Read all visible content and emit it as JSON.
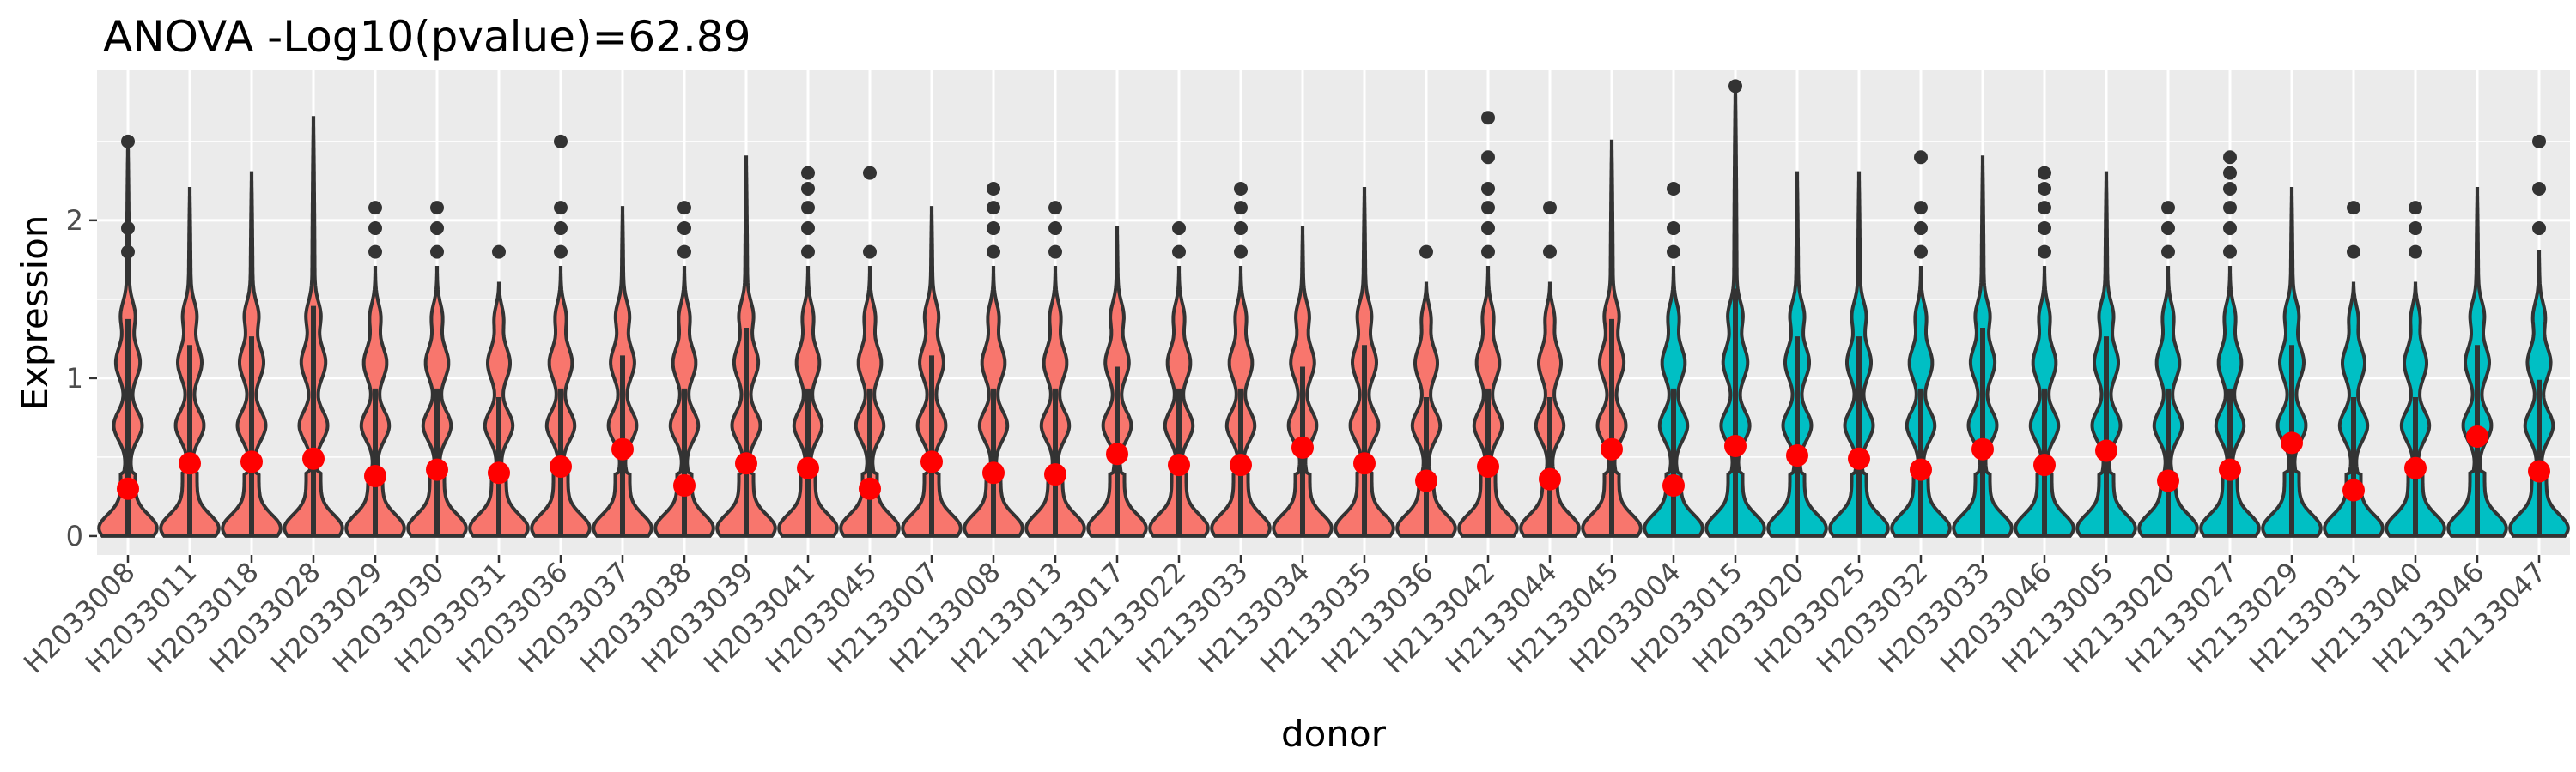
{
  "chart_data": {
    "type": "violin",
    "title": "ANOVA -Log10(pvalue)=62.89",
    "xlabel": "donor",
    "ylabel": "Expression",
    "ylim": [
      -0.12,
      2.95
    ],
    "y_ticks": [
      0,
      1,
      2
    ],
    "grid": true,
    "legend": "none",
    "group_colors": {
      "A": "#f8766d",
      "B": "#00bfc4"
    },
    "mean_point_color": "#ff0000",
    "donors": [
      {
        "name": "H2033008",
        "group": "A",
        "max": 2.5,
        "mean": 0.3,
        "outliers": [
          1.8,
          1.95,
          2.5
        ]
      },
      {
        "name": "H2033011",
        "group": "A",
        "max": 2.2,
        "mean": 0.46,
        "outliers": []
      },
      {
        "name": "H2033018",
        "group": "A",
        "max": 2.3,
        "mean": 0.47,
        "outliers": []
      },
      {
        "name": "H2033028",
        "group": "A",
        "max": 2.65,
        "mean": 0.49,
        "outliers": []
      },
      {
        "name": "H2033029",
        "group": "A",
        "max": 1.7,
        "mean": 0.38,
        "outliers": [
          1.8,
          1.95,
          2.08
        ]
      },
      {
        "name": "H2033030",
        "group": "A",
        "max": 1.7,
        "mean": 0.42,
        "outliers": [
          1.8,
          1.95,
          2.08
        ]
      },
      {
        "name": "H2033031",
        "group": "A",
        "max": 1.6,
        "mean": 0.4,
        "outliers": [
          1.8
        ]
      },
      {
        "name": "H2033036",
        "group": "A",
        "max": 1.7,
        "mean": 0.44,
        "outliers": [
          1.8,
          1.95,
          2.08,
          2.5
        ]
      },
      {
        "name": "H2033037",
        "group": "A",
        "max": 2.08,
        "mean": 0.55,
        "outliers": []
      },
      {
        "name": "H2033038",
        "group": "A",
        "max": 1.7,
        "mean": 0.32,
        "outliers": [
          1.8,
          1.95,
          2.08
        ]
      },
      {
        "name": "H2033039",
        "group": "A",
        "max": 2.4,
        "mean": 0.46,
        "outliers": []
      },
      {
        "name": "H2033041",
        "group": "A",
        "max": 1.7,
        "mean": 0.43,
        "outliers": [
          1.8,
          1.95,
          2.08,
          2.2,
          2.3
        ]
      },
      {
        "name": "H2033045",
        "group": "A",
        "max": 1.7,
        "mean": 0.3,
        "outliers": [
          1.8,
          2.3
        ]
      },
      {
        "name": "H2133007",
        "group": "A",
        "max": 2.08,
        "mean": 0.47,
        "outliers": []
      },
      {
        "name": "H2133008",
        "group": "A",
        "max": 1.7,
        "mean": 0.4,
        "outliers": [
          1.8,
          1.95,
          2.08,
          2.2
        ]
      },
      {
        "name": "H2133013",
        "group": "A",
        "max": 1.7,
        "mean": 0.39,
        "outliers": [
          1.8,
          1.95,
          2.08
        ]
      },
      {
        "name": "H2133017",
        "group": "A",
        "max": 1.95,
        "mean": 0.52,
        "outliers": []
      },
      {
        "name": "H2133022",
        "group": "A",
        "max": 1.7,
        "mean": 0.45,
        "outliers": [
          1.8,
          1.95
        ]
      },
      {
        "name": "H2133033",
        "group": "A",
        "max": 1.7,
        "mean": 0.45,
        "outliers": [
          1.8,
          1.95,
          2.08,
          2.2
        ]
      },
      {
        "name": "H2133034",
        "group": "A",
        "max": 1.95,
        "mean": 0.56,
        "outliers": []
      },
      {
        "name": "H2133035",
        "group": "A",
        "max": 2.2,
        "mean": 0.46,
        "outliers": []
      },
      {
        "name": "H2133036",
        "group": "A",
        "max": 1.6,
        "mean": 0.35,
        "outliers": [
          1.8
        ]
      },
      {
        "name": "H2133042",
        "group": "A",
        "max": 1.7,
        "mean": 0.44,
        "outliers": [
          1.8,
          1.95,
          2.08,
          2.2,
          2.4,
          2.65
        ]
      },
      {
        "name": "H2133044",
        "group": "A",
        "max": 1.6,
        "mean": 0.36,
        "outliers": [
          1.8,
          2.08
        ]
      },
      {
        "name": "H2133045",
        "group": "A",
        "max": 2.5,
        "mean": 0.55,
        "outliers": []
      },
      {
        "name": "H2033004",
        "group": "B",
        "max": 1.7,
        "mean": 0.32,
        "outliers": [
          1.8,
          1.95,
          2.2
        ]
      },
      {
        "name": "H2033015",
        "group": "B",
        "max": 2.85,
        "mean": 0.57,
        "outliers": [
          2.85
        ]
      },
      {
        "name": "H2033020",
        "group": "B",
        "max": 2.3,
        "mean": 0.51,
        "outliers": []
      },
      {
        "name": "H2033025",
        "group": "B",
        "max": 2.3,
        "mean": 0.49,
        "outliers": []
      },
      {
        "name": "H2033032",
        "group": "B",
        "max": 1.7,
        "mean": 0.42,
        "outliers": [
          1.8,
          1.95,
          2.08,
          2.4
        ]
      },
      {
        "name": "H2033033",
        "group": "B",
        "max": 2.4,
        "mean": 0.55,
        "outliers": []
      },
      {
        "name": "H2033046",
        "group": "B",
        "max": 1.7,
        "mean": 0.45,
        "outliers": [
          1.8,
          1.95,
          2.08,
          2.2,
          2.3
        ]
      },
      {
        "name": "H2133005",
        "group": "B",
        "max": 2.3,
        "mean": 0.54,
        "outliers": []
      },
      {
        "name": "H2133020",
        "group": "B",
        "max": 1.7,
        "mean": 0.35,
        "outliers": [
          1.8,
          1.95,
          2.08
        ]
      },
      {
        "name": "H2133027",
        "group": "B",
        "max": 1.7,
        "mean": 0.42,
        "outliers": [
          1.8,
          1.95,
          2.08,
          2.2,
          2.3,
          2.4
        ]
      },
      {
        "name": "H2133029",
        "group": "B",
        "max": 2.2,
        "mean": 0.59,
        "outliers": []
      },
      {
        "name": "H2133031",
        "group": "B",
        "max": 1.6,
        "mean": 0.29,
        "outliers": [
          1.8,
          2.08
        ]
      },
      {
        "name": "H2133040",
        "group": "B",
        "max": 1.6,
        "mean": 0.43,
        "outliers": [
          1.8,
          1.95,
          2.08
        ]
      },
      {
        "name": "H2133046",
        "group": "B",
        "max": 2.2,
        "mean": 0.63,
        "outliers": []
      },
      {
        "name": "H2133047",
        "group": "B",
        "max": 1.8,
        "mean": 0.41,
        "outliers": [
          1.95,
          2.2,
          2.5
        ]
      }
    ]
  }
}
